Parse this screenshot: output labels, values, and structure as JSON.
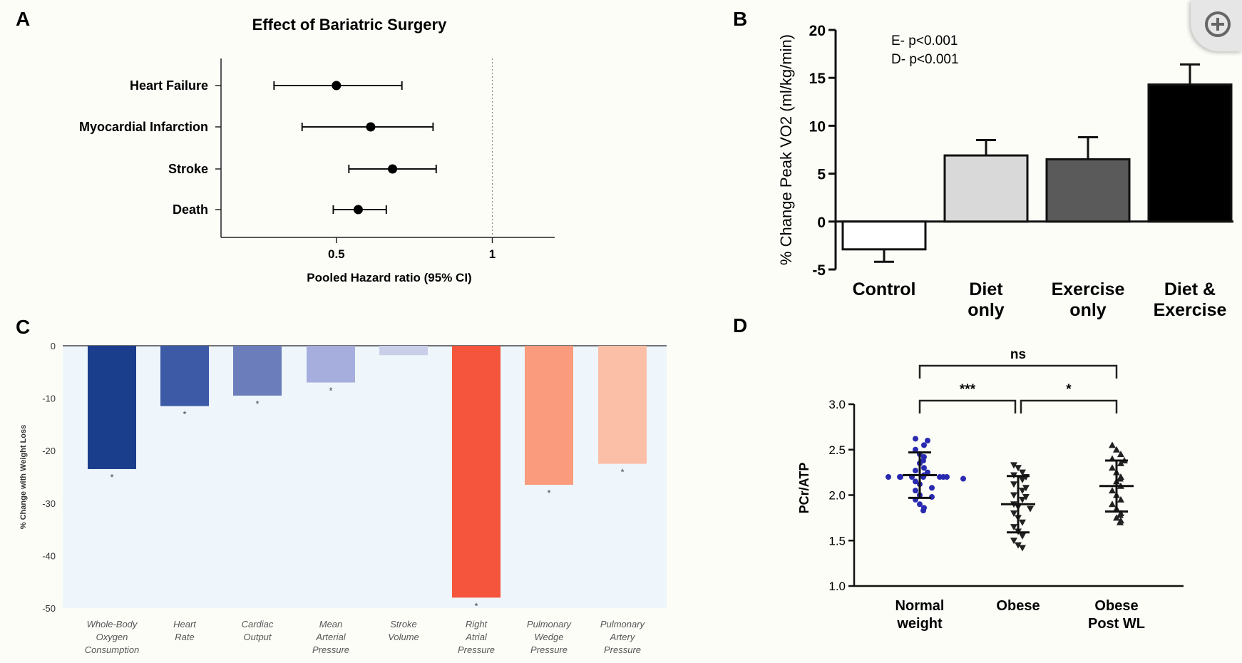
{
  "panels": [
    {
      "letter": "A",
      "title": "Effect of Bariatric Surgery",
      "type": "forest",
      "xlabel": "Pooled Hazard ratio (95% CI)",
      "x_ticks": [
        "0.5",
        "1"
      ],
      "rows": [
        {
          "label": "Heart Failure",
          "est": 0.5,
          "lo": 0.3,
          "hi": 0.71
        },
        {
          "label": "Myocardial Infarction",
          "est": 0.61,
          "lo": 0.39,
          "hi": 0.81
        },
        {
          "label": "Stroke",
          "est": 0.68,
          "lo": 0.54,
          "hi": 0.82
        },
        {
          "label": "Death",
          "est": 0.57,
          "lo": 0.49,
          "hi": 0.66
        }
      ]
    },
    {
      "letter": "B",
      "type": "bar",
      "ylabel": "% Change Peak VO2 (ml/kg/min)",
      "y_ticks": [
        "20",
        "15",
        "10",
        "5",
        "0",
        "-5"
      ],
      "annotations": [
        "E- p<0.001",
        "D- p<0.001"
      ],
      "categories": [
        {
          "line1": "Control",
          "line2": ""
        },
        {
          "line1": "Diet",
          "line2": "only"
        },
        {
          "line1": "Exercise",
          "line2": "only"
        },
        {
          "line1": "Diet &",
          "line2": "Exercise"
        }
      ],
      "values": [
        -2.9,
        6.9,
        6.5,
        14.3
      ],
      "errors": [
        1.3,
        1.6,
        2.3,
        2.1
      ],
      "colors": [
        "#ffffff",
        "#d9d9d9",
        "#5a5a5a",
        "#000000"
      ]
    },
    {
      "letter": "C",
      "type": "bar",
      "ylabel": "% Change with Weight Loss",
      "y_ticks": [
        "0",
        "-10",
        "-20",
        "-30",
        "-40",
        "-50"
      ],
      "categories": [
        [
          "Whole-Body",
          "Oxygen",
          "Consumption"
        ],
        [
          "Heart",
          "Rate"
        ],
        [
          "Cardiac",
          "Output"
        ],
        [
          "Mean",
          "Arterial",
          "Pressure"
        ],
        [
          "Stroke",
          "Volume"
        ],
        [
          "Right",
          "Atrial",
          "Pressure"
        ],
        [
          "Pulmonary",
          "Wedge",
          "Pressure"
        ],
        [
          "Pulmonary",
          "Artery",
          "Pressure"
        ]
      ],
      "values": [
        -23.5,
        -11.5,
        -9.5,
        -7,
        -1.8,
        -48,
        -26.5,
        -22.5
      ],
      "significance": [
        "*",
        "*",
        "*",
        "*",
        "",
        "*",
        "*",
        "*"
      ],
      "colors": [
        "#1a3d8c",
        "#3c5aa6",
        "#6c7dbb",
        "#a5aedc",
        "#c9cfe8",
        "#f4553c",
        "#f99b7c",
        "#fbbfa8"
      ],
      "background": "#eef6fb"
    },
    {
      "letter": "D",
      "type": "scatter",
      "ylabel": "PCr/ATP",
      "y_ticks": [
        "3.0",
        "2.5",
        "2.0",
        "1.5",
        "1.0"
      ],
      "categories": [
        {
          "line1": "Normal",
          "line2": "weight"
        },
        {
          "line1": "Obese",
          "line2": ""
        },
        {
          "line1": "Obese",
          "line2": "Post WL"
        }
      ],
      "means": [
        2.22,
        1.9,
        2.1
      ],
      "sd": [
        0.25,
        0.31,
        0.28
      ],
      "brackets": [
        {
          "from": 0,
          "to": 2,
          "label": "ns"
        },
        {
          "from": 0,
          "to": 1,
          "label": "***"
        },
        {
          "from": 1,
          "to": 2,
          "label": "*"
        }
      ],
      "groups": [
        [
          2.62,
          2.6,
          2.55,
          2.5,
          2.45,
          2.42,
          2.38,
          2.35,
          2.3,
          2.27,
          2.25,
          2.22,
          2.2,
          2.2,
          2.2,
          2.2,
          2.2,
          2.2,
          2.2,
          2.2,
          2.18,
          2.15,
          2.12,
          2.08,
          2.05,
          2.0,
          1.98,
          1.95,
          1.9,
          1.86,
          1.83
        ],
        [
          2.33,
          2.3,
          2.25,
          2.22,
          2.2,
          2.17,
          2.12,
          2.08,
          2.05,
          2.0,
          1.98,
          1.95,
          1.9,
          1.87,
          1.85,
          1.8,
          1.75,
          1.7,
          1.65,
          1.6,
          1.55,
          1.5,
          1.45,
          1.42
        ],
        [
          2.55,
          2.5,
          2.45,
          2.4,
          2.38,
          2.35,
          2.3,
          2.25,
          2.2,
          2.18,
          2.15,
          2.1,
          2.05,
          2.0,
          1.95,
          1.9,
          1.85,
          1.8,
          1.78,
          1.75,
          1.72,
          1.7
        ]
      ],
      "marker_colors": [
        "#2a2ab0",
        "#222222",
        "#222222"
      ],
      "markers": [
        "circle",
        "triangle-down",
        "triangle-up"
      ]
    }
  ],
  "zoom_icon": "zoom-in-icon"
}
